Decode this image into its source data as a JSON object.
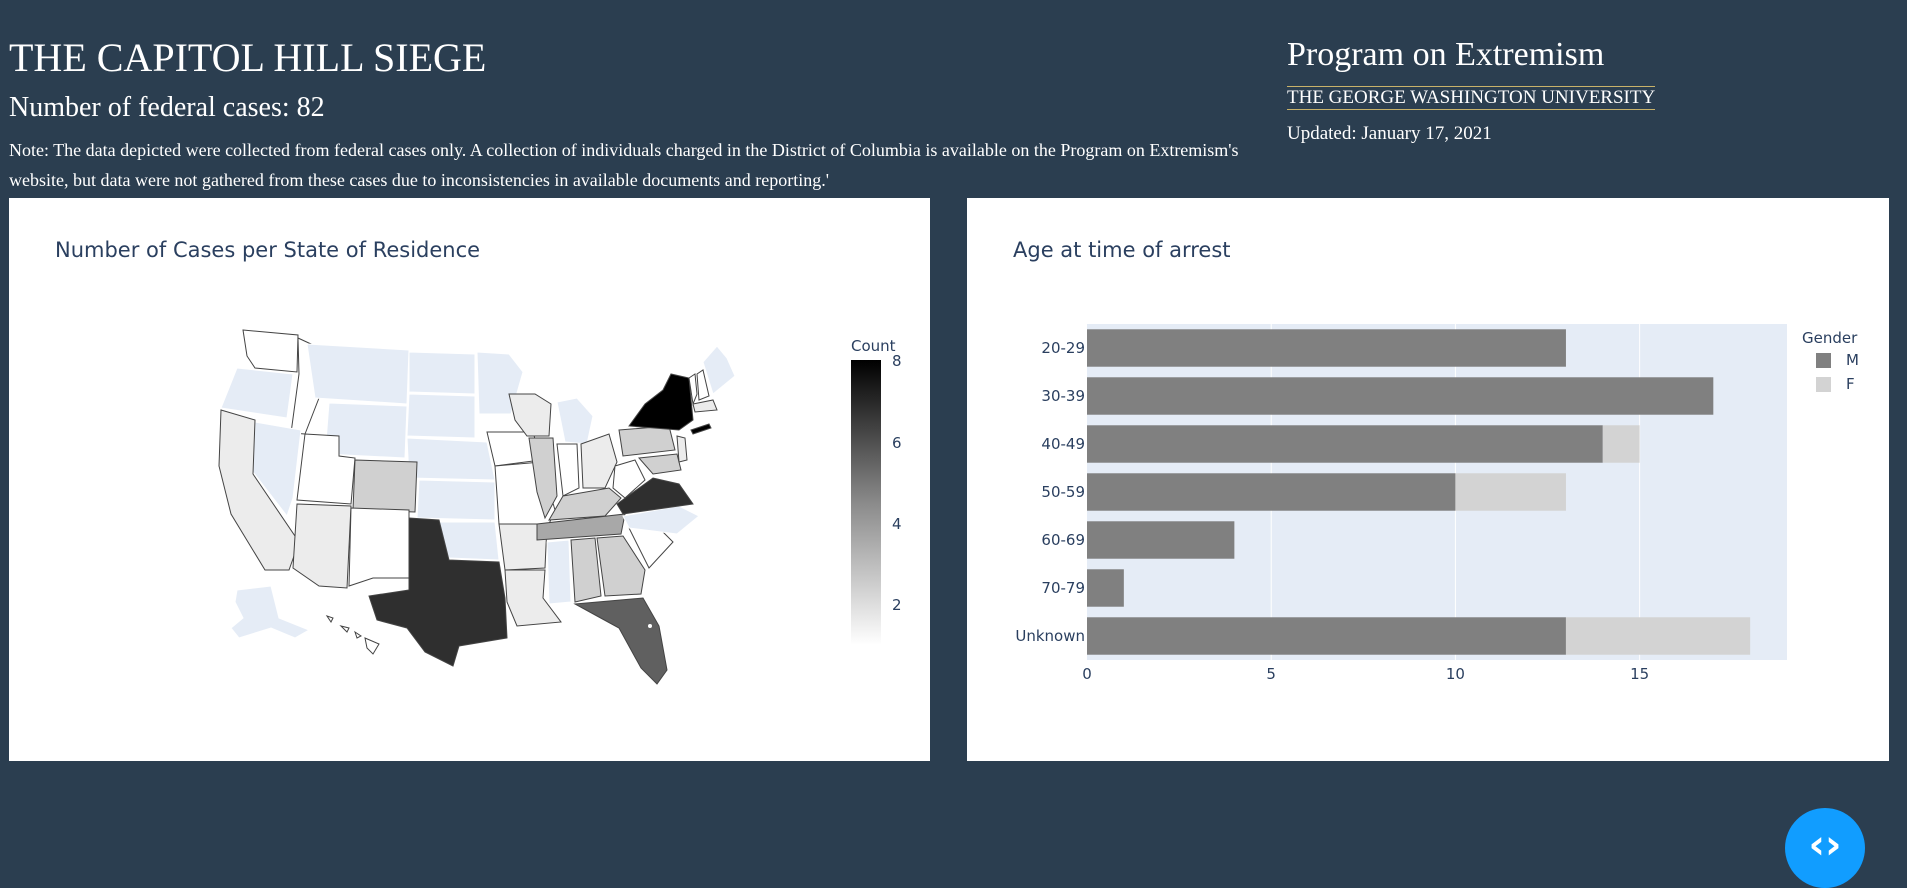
{
  "header": {
    "title": "THE CAPITOL HILL SIEGE",
    "case_count": "Number of federal cases: 82",
    "note": "Note: The data depicted were collected from federal cases only. A collection of individuals charged in the District of Columbia is available on the Program on Extremism's website, but data were not gathered from these cases due to inconsistencies in available documents and reporting.'",
    "program": "Program on Extremism",
    "university": "THE GEORGE WASHINGTON UNIVERSITY",
    "updated": "Updated: January 17, 2021"
  },
  "map": {
    "title": "Number of Cases per State of Residence",
    "colorbar_title": "Count",
    "colorbar_ticks": [
      "8",
      "6",
      "4",
      "2"
    ]
  },
  "bar": {
    "title": "Age at time of arrest",
    "legend_title": "Gender",
    "legend_m": "M",
    "legend_f": "F"
  },
  "toggle": {
    "glyph": "‹›"
  },
  "colors": {
    "background": "#2b3e50",
    "male": "#808080",
    "female": "#d3d3d3",
    "plot_bg": "#e5ecf6",
    "toggle": "#119dff"
  },
  "chart_data": [
    {
      "type": "bar",
      "title": "Age at time of arrest",
      "orientation": "horizontal",
      "stacked": true,
      "categories": [
        "20-29",
        "30-39",
        "40-49",
        "50-59",
        "60-69",
        "70-79",
        "Unknown"
      ],
      "series": [
        {
          "name": "M",
          "values": [
            13,
            17,
            14,
            10,
            4,
            1,
            13
          ]
        },
        {
          "name": "F",
          "values": [
            0,
            0,
            1,
            3,
            0,
            0,
            5
          ]
        }
      ],
      "xlim": [
        0,
        19
      ],
      "xticks": [
        0,
        5,
        10,
        15
      ],
      "legend": "top-right",
      "legend_title": "Gender",
      "grid": true
    },
    {
      "type": "heatmap",
      "subtype": "choropleth",
      "title": "Number of Cases per State of Residence",
      "colorbar_title": "Count",
      "range": [
        1,
        8
      ],
      "ticks": [
        2,
        4,
        6,
        8
      ]
    }
  ]
}
